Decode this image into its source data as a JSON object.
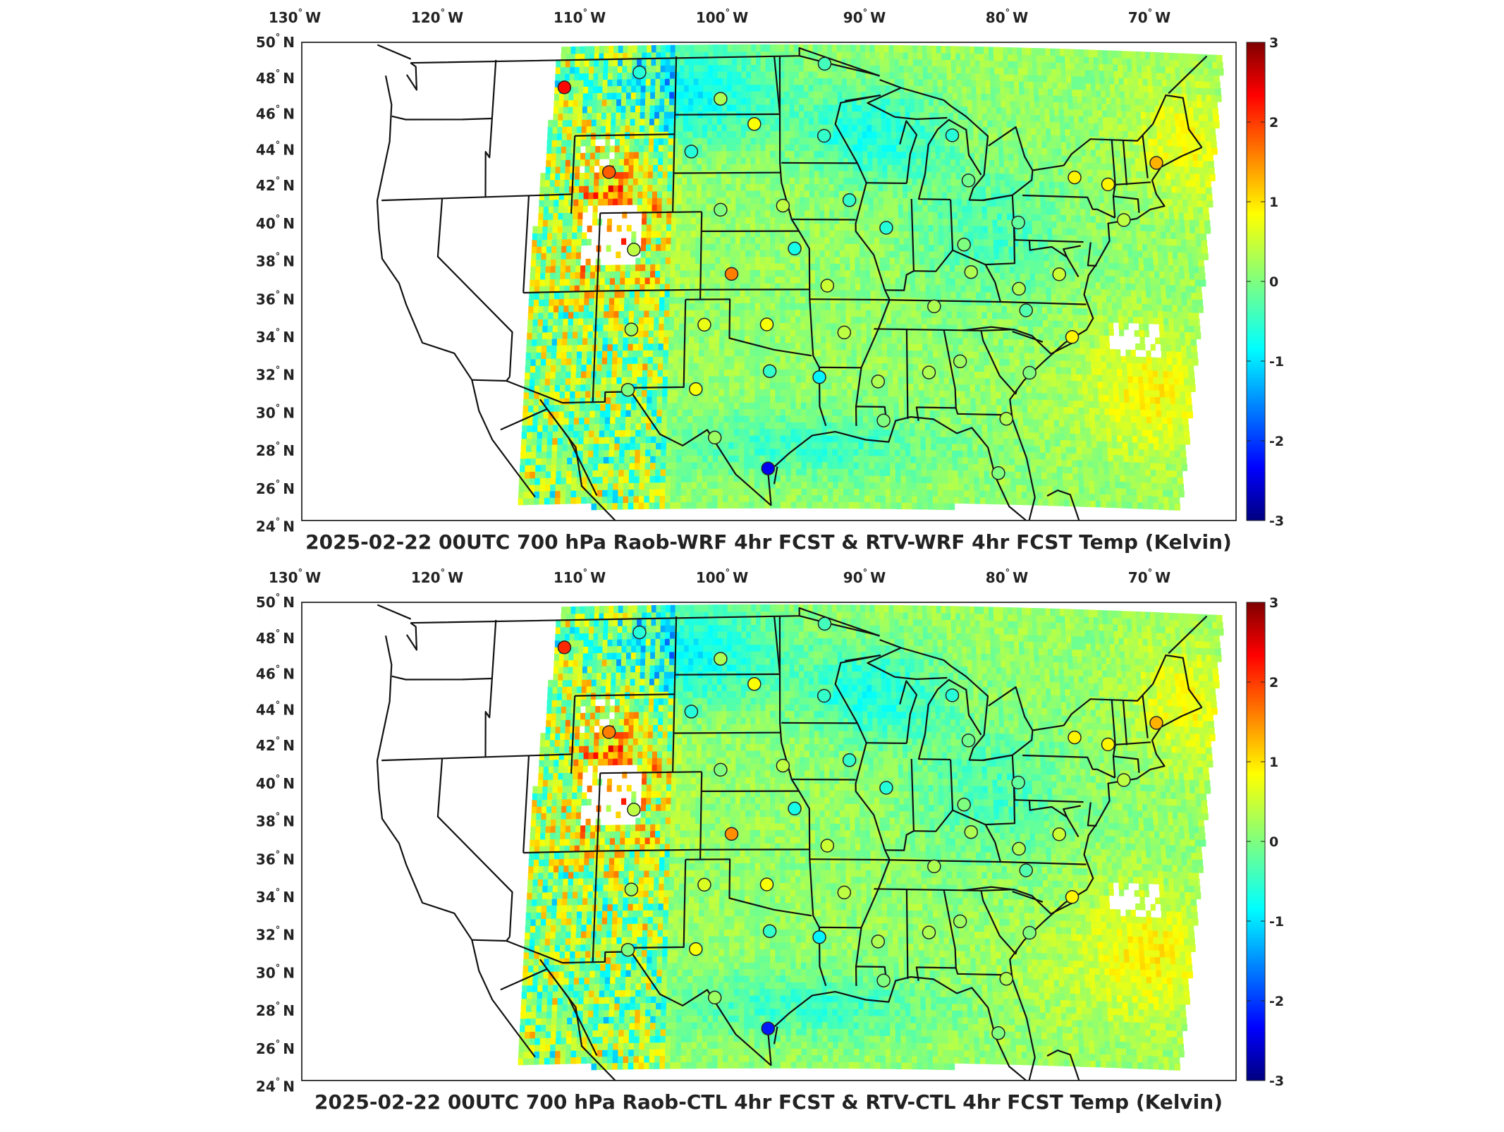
{
  "panels": [
    {
      "id": "top",
      "title": "2025-02-22 00UTC 700 hPa Raob-WRF 4hr FCST & RTV-WRF 4hr FCST Temp (Kelvin)"
    },
    {
      "id": "bottom",
      "title": "2025-02-22 00UTC 700 hPa Raob-CTL 4hr FCST & RTV-CTL 4hr FCST Temp (Kelvin)"
    }
  ],
  "lon_ticks": [
    {
      "value": -130,
      "label": "130",
      "suffix": "W"
    },
    {
      "value": -120,
      "label": "120",
      "suffix": "W"
    },
    {
      "value": -110,
      "label": "110",
      "suffix": "W"
    },
    {
      "value": -100,
      "label": "100",
      "suffix": "W"
    },
    {
      "value": -90,
      "label": "90",
      "suffix": "W"
    },
    {
      "value": -80,
      "label": "80",
      "suffix": "W"
    },
    {
      "value": -70,
      "label": "70",
      "suffix": "W"
    }
  ],
  "lat_ticks": [
    {
      "value": 50,
      "label": "50",
      "suffix": "N"
    },
    {
      "value": 48,
      "label": "48",
      "suffix": "N"
    },
    {
      "value": 46,
      "label": "46",
      "suffix": "N"
    },
    {
      "value": 44,
      "label": "44",
      "suffix": "N"
    },
    {
      "value": 42,
      "label": "42",
      "suffix": "N"
    },
    {
      "value": 40,
      "label": "40",
      "suffix": "N"
    },
    {
      "value": 38,
      "label": "38",
      "suffix": "N"
    },
    {
      "value": 36,
      "label": "36",
      "suffix": "N"
    },
    {
      "value": 34,
      "label": "34",
      "suffix": "N"
    },
    {
      "value": 32,
      "label": "32",
      "suffix": "N"
    },
    {
      "value": 30,
      "label": "30",
      "suffix": "N"
    },
    {
      "value": 28,
      "label": "28",
      "suffix": "N"
    },
    {
      "value": 26,
      "label": "26",
      "suffix": "N"
    },
    {
      "value": 24,
      "label": "24",
      "suffix": "N"
    }
  ],
  "colorbar": {
    "min": -3,
    "max": 3,
    "ticks": [
      "3",
      "2",
      "1",
      "0",
      "-1",
      "-2",
      "-3"
    ],
    "colormap": "jet",
    "colors": [
      "#00007f",
      "#0000ff",
      "#007fff",
      "#00ffff",
      "#7fff7f",
      "#ffff00",
      "#ff7f00",
      "#ff0000",
      "#7f0000"
    ]
  },
  "raob_stations": [
    {
      "lon": -111.9,
      "lat": 47.5,
      "top": 2.3,
      "bottom": 2.1
    },
    {
      "lon": -106.6,
      "lat": 48.2,
      "top": -0.6,
      "bottom": -0.6
    },
    {
      "lon": -100.8,
      "lat": 46.8,
      "top": 0.3,
      "bottom": 0.3
    },
    {
      "lon": -98.4,
      "lat": 45.5,
      "top": 0.8,
      "bottom": 0.8
    },
    {
      "lon": -93.5,
      "lat": 44.9,
      "top": -0.5,
      "bottom": -0.5
    },
    {
      "lon": -93.4,
      "lat": 48.6,
      "top": -0.4,
      "bottom": -0.4
    },
    {
      "lon": -102.8,
      "lat": 44.1,
      "top": -0.6,
      "bottom": -0.6
    },
    {
      "lon": -108.5,
      "lat": 43.1,
      "top": 1.8,
      "bottom": 1.6
    },
    {
      "lon": -100.7,
      "lat": 41.1,
      "top": 0.0,
      "bottom": 0.0
    },
    {
      "lon": -96.4,
      "lat": 41.3,
      "top": 0.4,
      "bottom": 0.4
    },
    {
      "lon": -91.8,
      "lat": 41.6,
      "top": -0.5,
      "bottom": -0.5
    },
    {
      "lon": -89.3,
      "lat": 40.2,
      "top": -0.6,
      "bottom": -0.6
    },
    {
      "lon": -95.6,
      "lat": 39.1,
      "top": -0.7,
      "bottom": -0.7
    },
    {
      "lon": -106.6,
      "lat": 39.1,
      "top": 0.4,
      "bottom": 0.4
    },
    {
      "lon": -99.9,
      "lat": 37.8,
      "top": 1.6,
      "bottom": 1.5
    },
    {
      "lon": -93.4,
      "lat": 37.2,
      "top": 0.5,
      "bottom": 0.5
    },
    {
      "lon": -97.5,
      "lat": 35.2,
      "top": 0.8,
      "bottom": 0.8
    },
    {
      "lon": -101.7,
      "lat": 35.2,
      "top": 0.7,
      "bottom": 0.6
    },
    {
      "lon": -106.6,
      "lat": 35.0,
      "top": 0.2,
      "bottom": 0.2
    },
    {
      "lon": -92.3,
      "lat": 34.8,
      "top": 0.4,
      "bottom": 0.4
    },
    {
      "lon": -97.3,
      "lat": 32.8,
      "top": -0.5,
      "bottom": -0.5
    },
    {
      "lon": -102.2,
      "lat": 31.9,
      "top": 0.8,
      "bottom": 0.8
    },
    {
      "lon": -106.7,
      "lat": 31.9,
      "top": 0.0,
      "bottom": 0.0
    },
    {
      "lon": -94.0,
      "lat": 32.5,
      "top": -0.9,
      "bottom": -0.9
    },
    {
      "lon": -90.1,
      "lat": 32.3,
      "top": 0.3,
      "bottom": 0.3
    },
    {
      "lon": -86.7,
      "lat": 32.8,
      "top": 0.3,
      "bottom": 0.3
    },
    {
      "lon": -84.6,
      "lat": 33.4,
      "top": 0.2,
      "bottom": 0.2
    },
    {
      "lon": -86.2,
      "lat": 36.2,
      "top": 0.3,
      "bottom": 0.3
    },
    {
      "lon": -83.6,
      "lat": 38.0,
      "top": 0.3,
      "bottom": 0.3
    },
    {
      "lon": -84.0,
      "lat": 39.4,
      "top": 0.0,
      "bottom": 0.0
    },
    {
      "lon": -80.2,
      "lat": 40.6,
      "top": -0.2,
      "bottom": -0.2
    },
    {
      "lon": -84.5,
      "lat": 45.0,
      "top": -0.6,
      "bottom": -0.6
    },
    {
      "lon": -83.5,
      "lat": 42.7,
      "top": -0.1,
      "bottom": -0.1
    },
    {
      "lon": -76.1,
      "lat": 43.0,
      "top": 0.9,
      "bottom": 0.9
    },
    {
      "lon": -73.8,
      "lat": 42.7,
      "top": 0.9,
      "bottom": 0.9
    },
    {
      "lon": -70.3,
      "lat": 43.9,
      "top": 1.3,
      "bottom": 1.3
    },
    {
      "lon": -72.9,
      "lat": 40.9,
      "top": 0.4,
      "bottom": 0.4
    },
    {
      "lon": -77.6,
      "lat": 38.0,
      "top": 0.5,
      "bottom": 0.5
    },
    {
      "lon": -80.4,
      "lat": 37.2,
      "top": 0.3,
      "bottom": 0.3
    },
    {
      "lon": -80.0,
      "lat": 36.1,
      "top": -0.3,
      "bottom": -0.3
    },
    {
      "lon": -77.0,
      "lat": 34.8,
      "top": 0.9,
      "bottom": 0.9
    },
    {
      "lon": -80.0,
      "lat": 32.9,
      "top": 0.0,
      "bottom": 0.0
    },
    {
      "lon": -81.7,
      "lat": 30.5,
      "top": 0.3,
      "bottom": 0.3
    },
    {
      "lon": -82.4,
      "lat": 27.7,
      "top": 0.0,
      "bottom": 0.0
    },
    {
      "lon": -89.8,
      "lat": 30.3,
      "top": 0.0,
      "bottom": 0.0
    },
    {
      "lon": -100.9,
      "lat": 29.4,
      "top": 0.2,
      "bottom": 0.2
    },
    {
      "lon": -97.4,
      "lat": 27.8,
      "top": -2.4,
      "bottom": -2.2
    }
  ]
}
